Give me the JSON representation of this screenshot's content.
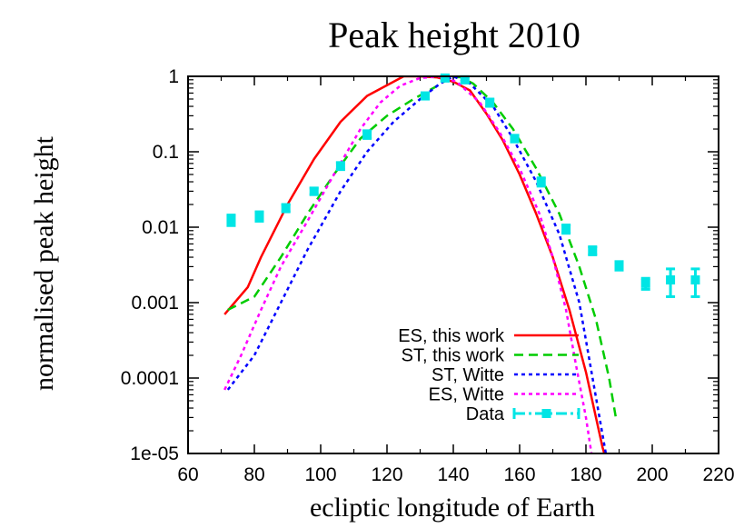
{
  "chart_data": {
    "type": "line",
    "title": "Peak height 2010",
    "xlabel": "ecliptic longitude of Earth",
    "ylabel": "normalised peak height",
    "xlim": [
      60,
      220
    ],
    "ylim": [
      1e-05,
      1
    ],
    "yscale": "log",
    "grid": false,
    "legend_position": "bottom-right",
    "x_ticks": [
      60,
      80,
      100,
      120,
      140,
      160,
      180,
      200,
      220
    ],
    "x_tick_labels": [
      "60",
      "80",
      "100",
      "120",
      "140",
      "160",
      "180",
      "200",
      "220"
    ],
    "y_ticks": [
      1e-05,
      0.0001,
      0.001,
      0.01,
      0.1,
      1
    ],
    "y_tick_labels": [
      "1e-05",
      "0.0001",
      "0.001",
      "0.01",
      "0.1",
      "1"
    ],
    "series": [
      {
        "name": "ES, this work",
        "style": "solid",
        "color": "#ff0000",
        "points": [
          [
            71,
            0.0007
          ],
          [
            78,
            0.0016
          ],
          [
            82,
            0.004
          ],
          [
            90,
            0.02
          ],
          [
            98,
            0.08
          ],
          [
            106,
            0.25
          ],
          [
            114,
            0.55
          ],
          [
            125,
            1.0
          ],
          [
            130,
            1.0
          ],
          [
            135,
            0.97
          ],
          [
            140,
            0.85
          ],
          [
            145,
            0.65
          ],
          [
            150,
            0.32
          ],
          [
            155,
            0.14
          ],
          [
            160,
            0.05
          ],
          [
            165,
            0.015
          ],
          [
            170,
            0.004
          ],
          [
            175,
            0.0008
          ],
          [
            180,
            0.00012
          ],
          [
            185,
            1.2e-05
          ],
          [
            187,
            6e-06
          ]
        ]
      },
      {
        "name": "ST, this work",
        "style": "dashed",
        "color": "#00cc00",
        "points": [
          [
            72,
            0.0008
          ],
          [
            80,
            0.0012
          ],
          [
            88,
            0.004
          ],
          [
            96,
            0.015
          ],
          [
            104,
            0.05
          ],
          [
            112,
            0.15
          ],
          [
            120,
            0.3
          ],
          [
            128,
            0.5
          ],
          [
            134,
            0.7
          ],
          [
            139,
            0.95
          ],
          [
            142,
            0.98
          ],
          [
            146,
            0.8
          ],
          [
            152,
            0.45
          ],
          [
            158,
            0.2
          ],
          [
            165,
            0.06
          ],
          [
            172,
            0.015
          ],
          [
            178,
            0.003
          ],
          [
            183,
            0.0006
          ],
          [
            187,
            0.0001
          ],
          [
            189,
            3e-05
          ]
        ]
      },
      {
        "name": "ST, Witte",
        "style": "dotted",
        "color": "#0000ff",
        "points": [
          [
            72,
            7e-05
          ],
          [
            80,
            0.0002
          ],
          [
            88,
            0.001
          ],
          [
            96,
            0.005
          ],
          [
            106,
            0.03
          ],
          [
            114,
            0.1
          ],
          [
            122,
            0.25
          ],
          [
            130,
            0.5
          ],
          [
            136,
            0.8
          ],
          [
            140,
            1.0
          ],
          [
            145,
            0.8
          ],
          [
            152,
            0.4
          ],
          [
            158,
            0.15
          ],
          [
            165,
            0.04
          ],
          [
            172,
            0.008
          ],
          [
            178,
            0.001
          ],
          [
            182,
            0.0001
          ],
          [
            186,
            1e-05
          ]
        ]
      },
      {
        "name": "ES, Witte",
        "style": "dotted",
        "color": "#ff00ff",
        "points": [
          [
            71,
            7e-05
          ],
          [
            76,
            0.0002
          ],
          [
            82,
            0.0008
          ],
          [
            88,
            0.003
          ],
          [
            96,
            0.012
          ],
          [
            104,
            0.05
          ],
          [
            112,
            0.2
          ],
          [
            118,
            0.45
          ],
          [
            124,
            0.75
          ],
          [
            130,
            0.95
          ],
          [
            136,
            1.0
          ],
          [
            141,
            0.85
          ],
          [
            148,
            0.45
          ],
          [
            154,
            0.18
          ],
          [
            160,
            0.06
          ],
          [
            166,
            0.015
          ],
          [
            170,
            0.004
          ],
          [
            174,
            0.0008
          ],
          [
            177,
            0.00015
          ],
          [
            180,
            3e-05
          ],
          [
            182,
            8e-06
          ]
        ]
      },
      {
        "name": "Data",
        "style": "points-errorbars",
        "color": "#00e5e5",
        "points": [
          [
            73,
            0.0125
          ],
          [
            81.5,
            0.014
          ],
          [
            89.5,
            0.018
          ],
          [
            98,
            0.03
          ],
          [
            106,
            0.065
          ],
          [
            114,
            0.17
          ],
          [
            131.5,
            0.55
          ],
          [
            137.5,
            0.95
          ],
          [
            143.5,
            0.9
          ],
          [
            151,
            0.45
          ],
          [
            158.5,
            0.15
          ],
          [
            166.5,
            0.04
          ],
          [
            174,
            0.0095
          ],
          [
            182,
            0.0049
          ],
          [
            190,
            0.0031
          ],
          [
            198,
            0.0018
          ],
          [
            205.5,
            0.002
          ],
          [
            213,
            0.002
          ]
        ],
        "errors": [
          [
            0.0105,
            0.0145
          ],
          [
            0.012,
            0.016
          ],
          [
            0.016,
            0.02
          ],
          [
            0.027,
            0.033
          ],
          [
            0.058,
            0.072
          ],
          [
            0.15,
            0.19
          ],
          [
            0.5,
            0.6
          ],
          [
            0.87,
            1.03
          ],
          [
            0.82,
            0.98
          ],
          [
            0.4,
            0.5
          ],
          [
            0.135,
            0.165
          ],
          [
            0.035,
            0.045
          ],
          [
            0.0083,
            0.0107
          ],
          [
            0.0043,
            0.0055
          ],
          [
            0.0027,
            0.0035
          ],
          [
            0.0015,
            0.0021
          ],
          [
            0.0012,
            0.0028
          ],
          [
            0.0012,
            0.0028
          ]
        ]
      }
    ]
  }
}
